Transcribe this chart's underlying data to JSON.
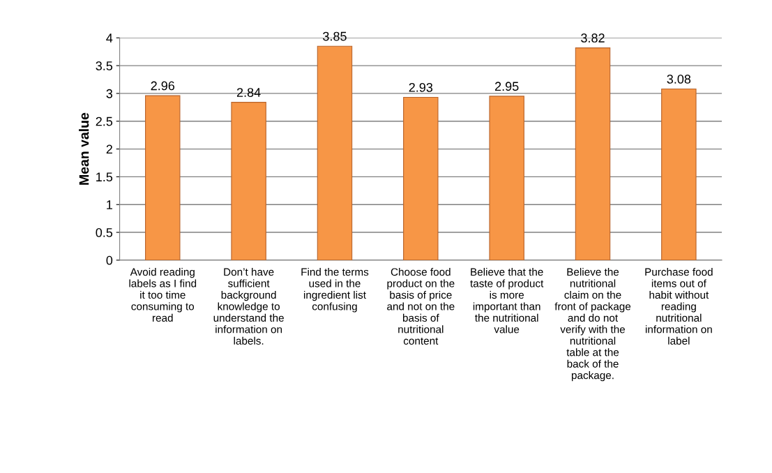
{
  "chart_data": {
    "type": "bar",
    "ylabel": "Mean value",
    "categories": [
      "Avoid reading labels as I find it too time consuming to read",
      "Don’t have sufficient background knowledge to understand the information on labels.",
      "Find the terms used in the ingredient list confusing",
      "Choose food product on the basis of price and not on the basis of nutritional content",
      "Believe that the taste of product is more important than the nutritional value",
      "Believe the nutritional claim on the front of package and do not verify with the nutritional table at the back of the package.",
      "Purchase food items out of habit without reading nutritional information on label"
    ],
    "values": [
      2.96,
      2.84,
      3.85,
      2.93,
      2.95,
      3.82,
      3.08
    ],
    "color": "#f79646",
    "ylim": [
      0,
      4
    ],
    "yticks": [
      0,
      0.5,
      1,
      1.5,
      2,
      2.5,
      3,
      3.5,
      4
    ],
    "grid": "y",
    "data_labels": true
  }
}
